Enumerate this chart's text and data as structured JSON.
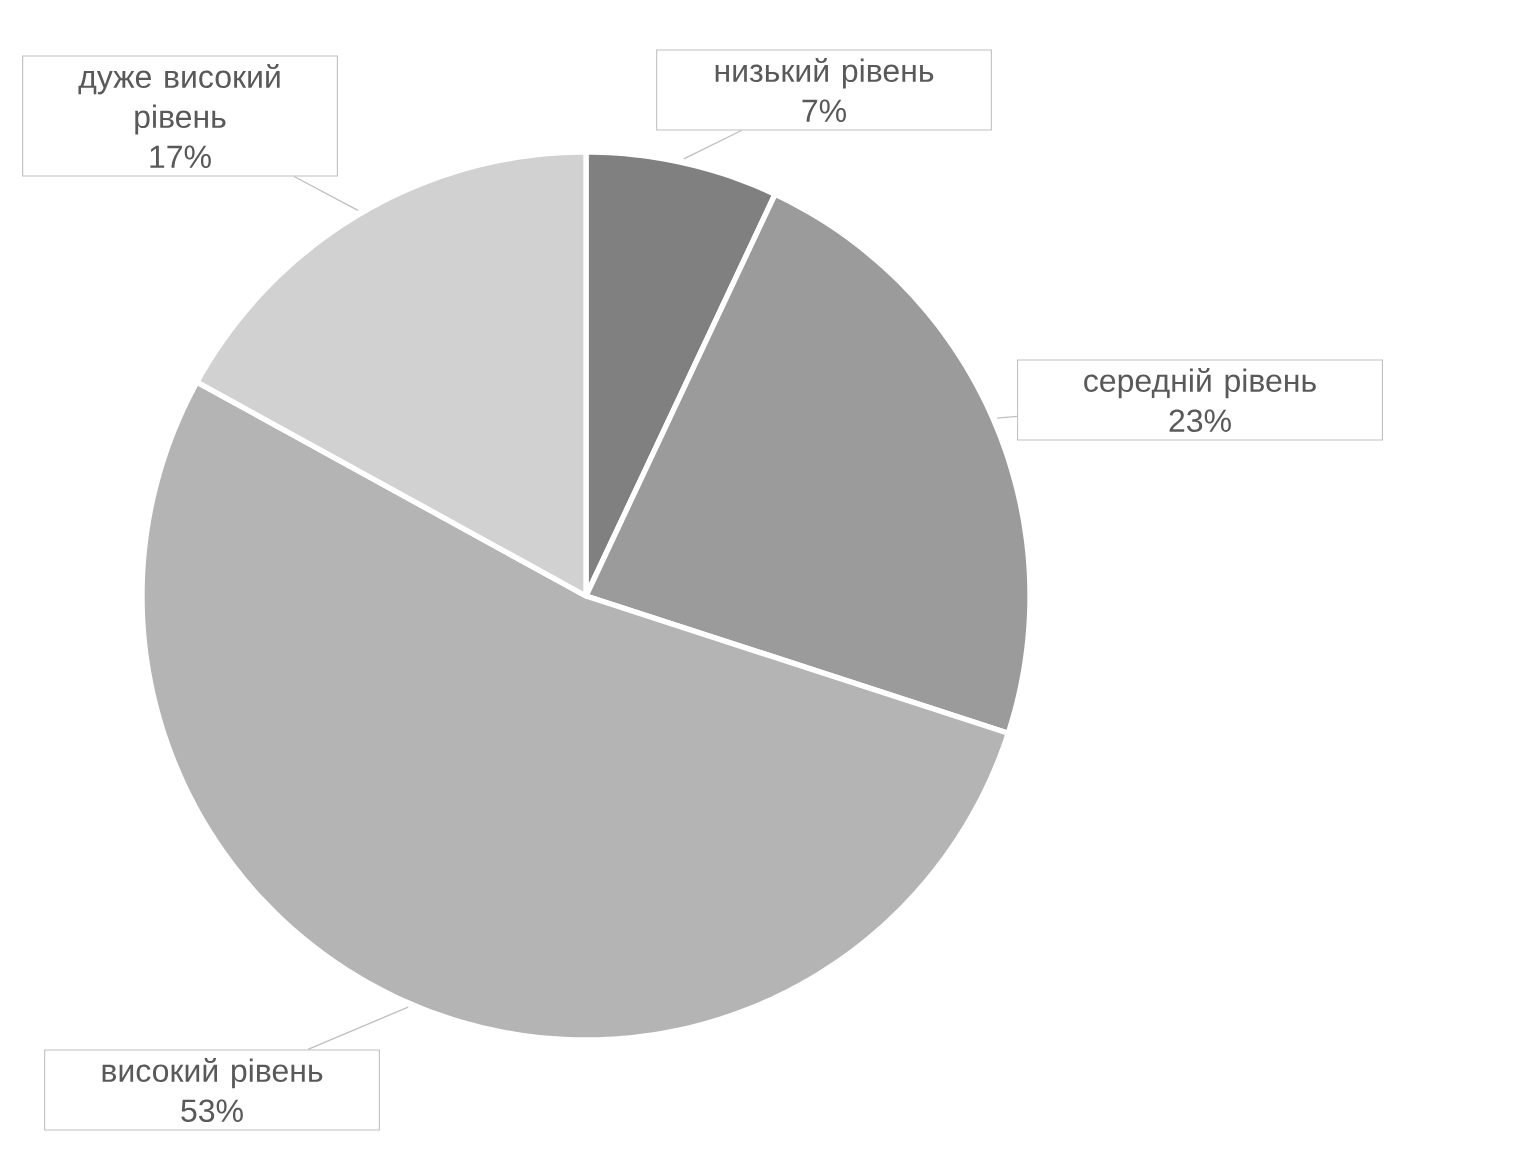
{
  "chart_data": {
    "type": "pie",
    "categories": [
      "низький рівень",
      "середній рівень",
      "високий рівень",
      "дуже високий рівень"
    ],
    "values": [
      7,
      23,
      53,
      17
    ],
    "colors": [
      "#808080",
      "#9b9b9b",
      "#b4b4b4",
      "#d1d1d1"
    ],
    "value_labels": [
      "7%",
      "23%",
      "53%",
      "17%"
    ],
    "legend": false
  }
}
